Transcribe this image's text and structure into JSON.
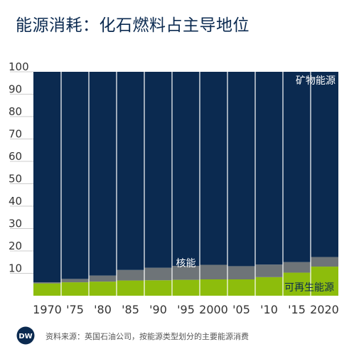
{
  "header": {
    "title": "能源消耗：化石燃料占主导地位"
  },
  "footer": {
    "logo_text": "DW",
    "source": "资料来源：英国石油公司，按能源类型划分的主要能源消费"
  },
  "colors": {
    "fossil": "#0b2a50",
    "nuclear": "#6e7478",
    "renewable": "#8dbd0c",
    "divider": "#ffffff",
    "gridline": "#cccccc",
    "logo_bg": "#0b2a50"
  },
  "chart_data": {
    "type": "bar",
    "stacked": true,
    "percent_stacked": true,
    "categories": [
      "1970",
      "'75",
      "'80",
      "'85",
      "'90",
      "'95",
      "2000",
      "'05",
      "'10",
      "'15",
      "2020"
    ],
    "yticks": [
      10,
      20,
      30,
      40,
      50,
      60,
      70,
      80,
      90,
      100
    ],
    "ylim": [
      0,
      100
    ],
    "series": [
      {
        "name": "可再生能源",
        "key": "renewable",
        "values": [
          5.5,
          6,
          6.3,
          6.8,
          6.9,
          7.1,
          7.3,
          7.3,
          8.3,
          10.3,
          13
        ]
      },
      {
        "name": "核能",
        "key": "nuclear",
        "values": [
          0.5,
          1.5,
          2.7,
          4.7,
          5.6,
          6.2,
          6.5,
          5.9,
          5.6,
          4.7,
          4.3
        ]
      },
      {
        "name": "矿物能源",
        "key": "fossil",
        "values": [
          94,
          92.5,
          91,
          88.5,
          87.5,
          86.7,
          86.2,
          86.8,
          86.1,
          85,
          82.7
        ]
      }
    ],
    "grid": true,
    "legend": "inline labels"
  }
}
